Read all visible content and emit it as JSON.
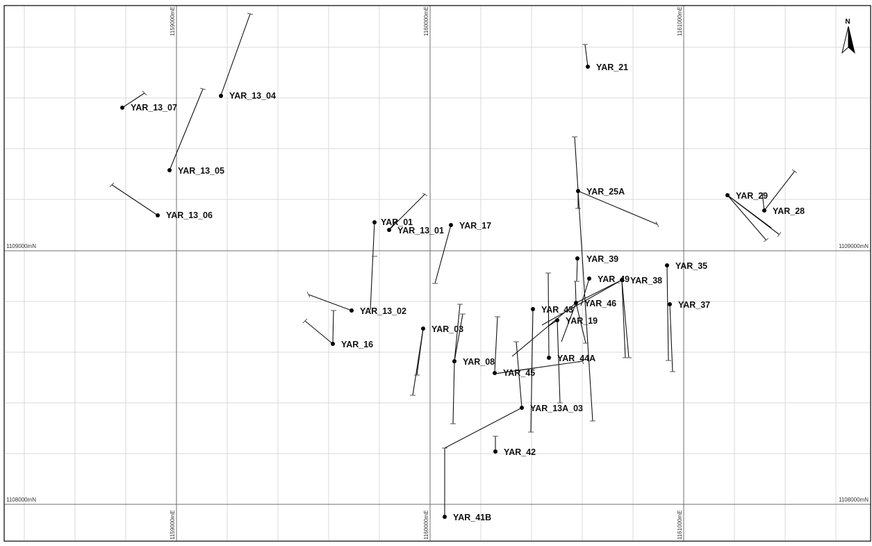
{
  "map": {
    "north_label": "N",
    "easting_labels": [
      {
        "id": "e1159",
        "text": "1159000mE"
      },
      {
        "id": "e1160",
        "text": "1160000mE"
      },
      {
        "id": "e1161",
        "text": "1161000mE"
      }
    ],
    "northing_labels": [
      {
        "id": "n1109",
        "text": "1109000mN"
      },
      {
        "id": "n1108",
        "text": "1108000mN"
      }
    ],
    "drillholes": [
      {
        "name": "YAR_13_07"
      },
      {
        "name": "YAR_13_04"
      },
      {
        "name": "YAR_13_05"
      },
      {
        "name": "YAR_13_06"
      },
      {
        "name": "YAR_21"
      },
      {
        "name": "YAR_25A"
      },
      {
        "name": "YAR_28"
      },
      {
        "name": "YAR_29"
      },
      {
        "name": "YAR_01"
      },
      {
        "name": "YAR_13_01"
      },
      {
        "name": "YAR_17"
      },
      {
        "name": "YAR_39"
      },
      {
        "name": "YAR_35"
      },
      {
        "name": "YAR_49"
      },
      {
        "name": "YAR_38"
      },
      {
        "name": "YAR_37"
      },
      {
        "name": "YAR_13_02"
      },
      {
        "name": "YAR_43"
      },
      {
        "name": "YAR_46"
      },
      {
        "name": "YAR_19"
      },
      {
        "name": "YAR_16"
      },
      {
        "name": "YAR_03"
      },
      {
        "name": "YAR_08"
      },
      {
        "name": "YAR_44A"
      },
      {
        "name": "YAR_45"
      },
      {
        "name": "YAR_13A_03"
      },
      {
        "name": "YAR_42"
      },
      {
        "name": "YAR_41B"
      }
    ]
  }
}
